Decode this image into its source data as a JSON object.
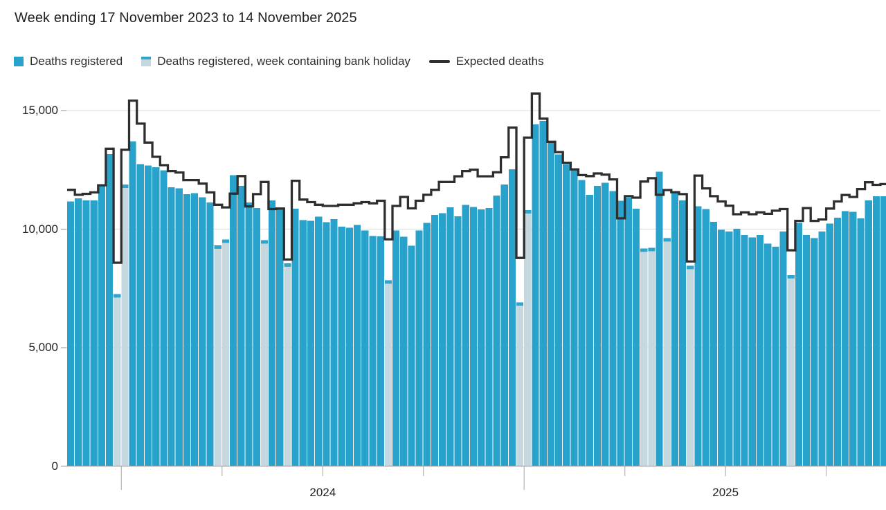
{
  "title": "Week ending 17 November 2023 to 14 November 2025",
  "legend": {
    "deaths_registered": "Deaths registered",
    "bank_holiday": "Deaths registered, week containing bank holiday",
    "expected": "Expected deaths"
  },
  "y_axis": {
    "tick_labels": [
      "0",
      "5,000",
      "10,000",
      "15,000"
    ],
    "tick_values": [
      0,
      5000,
      10000,
      15000
    ]
  },
  "x_axis": {
    "year_labels": [
      {
        "label": "2024",
        "week_index": 33
      },
      {
        "label": "2025",
        "week_index": 85
      }
    ],
    "ticks": [
      {
        "week_index": 7,
        "type": "long"
      },
      {
        "week_index": 20,
        "type": "short"
      },
      {
        "week_index": 33,
        "type": "short"
      },
      {
        "week_index": 46,
        "type": "short"
      },
      {
        "week_index": 59,
        "type": "long"
      },
      {
        "week_index": 72,
        "type": "short"
      },
      {
        "week_index": 85,
        "type": "short"
      },
      {
        "week_index": 98,
        "type": "short"
      }
    ]
  },
  "colors": {
    "bar_blue": "#28a1cb",
    "bar_bank_holiday": "#c5d8df",
    "bar_bank_holiday_cap": "#2ea5cd",
    "expected_line": "#2e2e2e",
    "grid": "#d9d9d9",
    "axis": "#a0a0a0",
    "tick": "#b4b4b4",
    "text": "#222222"
  },
  "chart_data": {
    "type": "bar",
    "title": "Week ending 17 November 2023 to 14 November 2025",
    "x_description": "Weekly values, week ending 17 November 2023 to 14 November 2025",
    "ylim": [
      0,
      15500
    ],
    "gridlines": [
      5000,
      10000,
      15000
    ],
    "legend_position": "top-left",
    "series": [
      {
        "name": "Deaths registered",
        "type": "bar",
        "values": [
          11170,
          11300,
          11220,
          11220,
          11890,
          13170,
          7260,
          11890,
          13700,
          12740,
          12690,
          12610,
          12480,
          11760,
          11720,
          11480,
          11520,
          11340,
          11120,
          9320,
          9570,
          12280,
          11830,
          11120,
          10900,
          9540,
          11210,
          10820,
          8560,
          10860,
          10380,
          10360,
          10530,
          10290,
          10420,
          10110,
          10070,
          10180,
          9940,
          9720,
          9700,
          7850,
          9940,
          9680,
          9300,
          9940,
          10270,
          10600,
          10680,
          10920,
          10550,
          11030,
          10940,
          10830,
          10900,
          11420,
          11880,
          12530,
          6920,
          10800,
          14420,
          14560,
          13650,
          13150,
          12750,
          12550,
          12070,
          11450,
          11830,
          11960,
          11610,
          11200,
          11330,
          10870,
          9190,
          9220,
          12420,
          9620,
          11540,
          11220,
          8460,
          10960,
          10850,
          10310,
          9980,
          9900,
          10020,
          9760,
          9650,
          9760,
          9400,
          9260,
          9910,
          8070,
          10270,
          9760,
          9620,
          9910,
          10240,
          10490,
          10760,
          10740,
          10460,
          11220,
          11390,
          11390
        ]
      },
      {
        "name": "Expected deaths",
        "type": "step-line",
        "values": [
          11660,
          11450,
          11490,
          11550,
          11850,
          13390,
          8590,
          13350,
          15420,
          14450,
          13650,
          13050,
          12700,
          12450,
          12390,
          12070,
          12070,
          11920,
          11550,
          11030,
          10920,
          11500,
          12240,
          10960,
          11480,
          11990,
          10850,
          10870,
          8720,
          12040,
          11250,
          11140,
          11030,
          10980,
          10980,
          11030,
          11030,
          11090,
          11140,
          11090,
          11200,
          9570,
          10980,
          11360,
          10880,
          11200,
          11450,
          11660,
          11990,
          11990,
          12230,
          12450,
          12510,
          12230,
          12230,
          12400,
          13030,
          14280,
          8790,
          13860,
          15720,
          14660,
          13680,
          13250,
          12800,
          12520,
          12280,
          12240,
          12350,
          12300,
          12100,
          10460,
          11390,
          11330,
          12010,
          12150,
          11450,
          11650,
          11560,
          11480,
          8640,
          12260,
          11720,
          11390,
          11170,
          10990,
          10630,
          10710,
          10630,
          10710,
          10650,
          10780,
          10850,
          9110,
          10350,
          10890,
          10350,
          10410,
          10870,
          11170,
          11440,
          11360,
          11690,
          11980,
          11870,
          11900
        ]
      }
    ],
    "bank_holiday_week_indices": [
      6,
      7,
      19,
      20,
      25,
      28,
      41,
      58,
      59,
      74,
      75,
      77,
      80,
      93
    ]
  }
}
